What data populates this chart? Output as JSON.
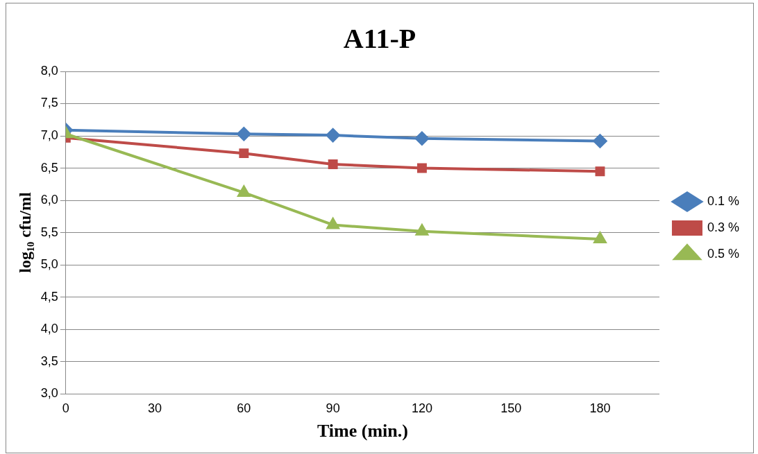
{
  "chart_data": {
    "type": "line",
    "title": "A11-P",
    "xlabel": "Time (min.)",
    "ylabel": "log₁₀ cfu/ml",
    "x": [
      0,
      60,
      90,
      120,
      180
    ],
    "series": [
      {
        "name": "0.1 %",
        "color": "#4a7ebb",
        "marker": "diamond",
        "values": [
          7.09,
          7.03,
          7.01,
          6.96,
          6.92
        ]
      },
      {
        "name": "0.3 %",
        "color": "#be4b48",
        "marker": "square",
        "values": [
          6.97,
          6.73,
          6.56,
          6.5,
          6.45
        ]
      },
      {
        "name": "0.5 %",
        "color": "#98b954",
        "marker": "triangle",
        "values": [
          7.03,
          6.12,
          5.62,
          5.52,
          5.4
        ]
      }
    ],
    "xlim": [
      0,
      200
    ],
    "xticks": [
      0,
      30,
      60,
      90,
      120,
      150,
      180
    ],
    "ylim": [
      3,
      8
    ],
    "yticks": [
      {
        "value": 3,
        "label": "3,0"
      },
      {
        "value": 3.5,
        "label": "3,5"
      },
      {
        "value": 4,
        "label": "4,0"
      },
      {
        "value": 4.5,
        "label": "4,5"
      },
      {
        "value": 5,
        "label": "5,0"
      },
      {
        "value": 5.5,
        "label": "5,5"
      },
      {
        "value": 6,
        "label": "6,0"
      },
      {
        "value": 6.5,
        "label": "6,5"
      },
      {
        "value": 7,
        "label": "7,0"
      },
      {
        "value": 7.5,
        "label": "7,5"
      },
      {
        "value": 8,
        "label": "8,0"
      }
    ],
    "grid": "y",
    "legend": "right",
    "line_style": "solid"
  }
}
